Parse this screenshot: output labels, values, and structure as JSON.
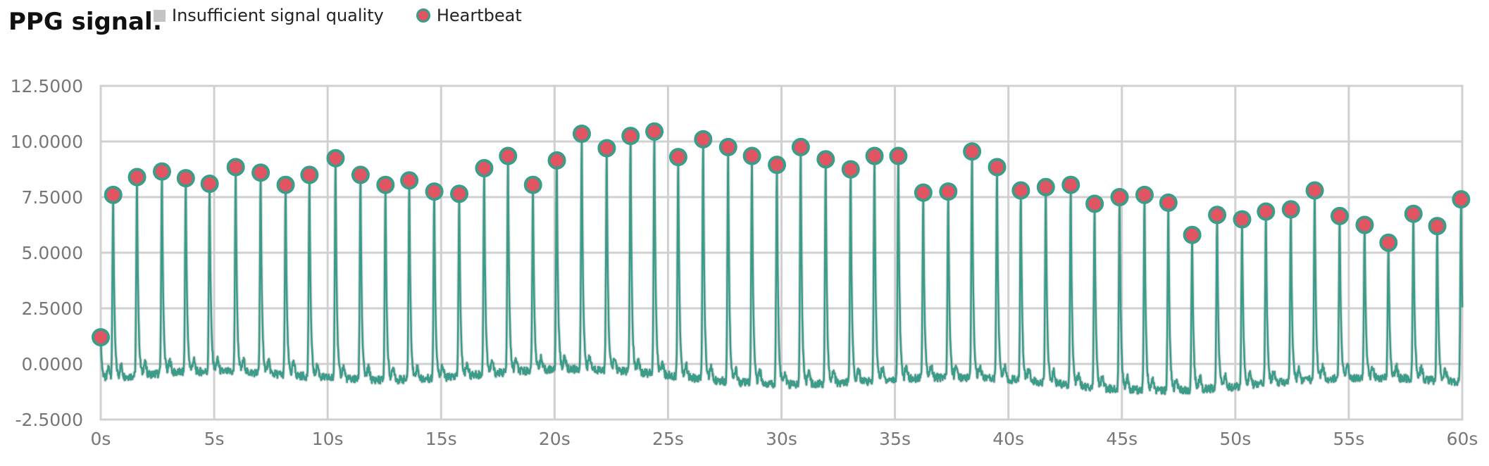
{
  "title": "PPG signal:",
  "legend": {
    "insufficient_label": "Insufficient signal quality",
    "heartbeat_label": "Heartbeat"
  },
  "colors": {
    "signal": "#3a9c89",
    "marker_fill": "#e05561",
    "marker_stroke": "#3a9c89",
    "grid": "#d0d0d0",
    "insufficient": "#c4c4c4"
  },
  "chart_data": {
    "type": "line",
    "title": "PPG signal:",
    "xlabel": "",
    "ylabel": "",
    "xlim": [
      0,
      60
    ],
    "ylim": [
      -2.5,
      12.5
    ],
    "x_ticks": [
      "0s",
      "5s",
      "10s",
      "15s",
      "20s",
      "25s",
      "30s",
      "35s",
      "40s",
      "45s",
      "50s",
      "55s",
      "60s"
    ],
    "y_ticks": [
      "12.5000",
      "10.0000",
      "7.5000",
      "5.0000",
      "2.5000",
      "0.0000",
      "-2.5000"
    ],
    "grid": true,
    "legend_position": "top",
    "heartbeats": {
      "t": [
        0.0,
        0.55,
        1.6,
        2.7,
        3.75,
        4.8,
        5.95,
        7.05,
        8.15,
        9.2,
        10.35,
        11.45,
        12.55,
        13.6,
        14.7,
        15.8,
        16.9,
        17.95,
        19.05,
        20.1,
        21.2,
        22.3,
        23.35,
        24.4,
        25.45,
        26.55,
        27.65,
        28.7,
        29.8,
        30.85,
        31.95,
        33.05,
        34.1,
        35.15,
        36.25,
        37.35,
        38.4,
        39.5,
        40.55,
        41.65,
        42.75,
        43.8,
        44.9,
        46.0,
        47.05,
        48.1,
        49.2,
        50.3,
        51.35,
        52.45,
        53.5,
        54.6,
        55.7,
        56.75,
        57.85,
        58.9,
        59.95
      ],
      "amplitude": [
        1.2,
        7.6,
        8.4,
        8.65,
        8.35,
        8.1,
        8.85,
        8.6,
        8.05,
        8.5,
        9.25,
        8.5,
        8.05,
        8.25,
        7.75,
        7.65,
        8.8,
        9.35,
        8.05,
        9.15,
        10.35,
        9.7,
        10.25,
        10.45,
        9.3,
        10.1,
        9.75,
        9.35,
        8.95,
        9.75,
        9.2,
        8.75,
        9.35,
        9.35,
        7.7,
        7.75,
        9.55,
        8.85,
        7.8,
        7.95,
        8.05,
        7.2,
        7.5,
        7.6,
        7.25,
        5.8,
        6.7,
        6.5,
        6.85,
        6.95,
        7.8,
        6.65,
        6.25,
        5.45,
        6.75,
        6.2,
        7.4
      ]
    },
    "series": [
      {
        "name": "PPG signal",
        "baseline_min": -1.7,
        "baseline_max": 0.4
      }
    ]
  }
}
